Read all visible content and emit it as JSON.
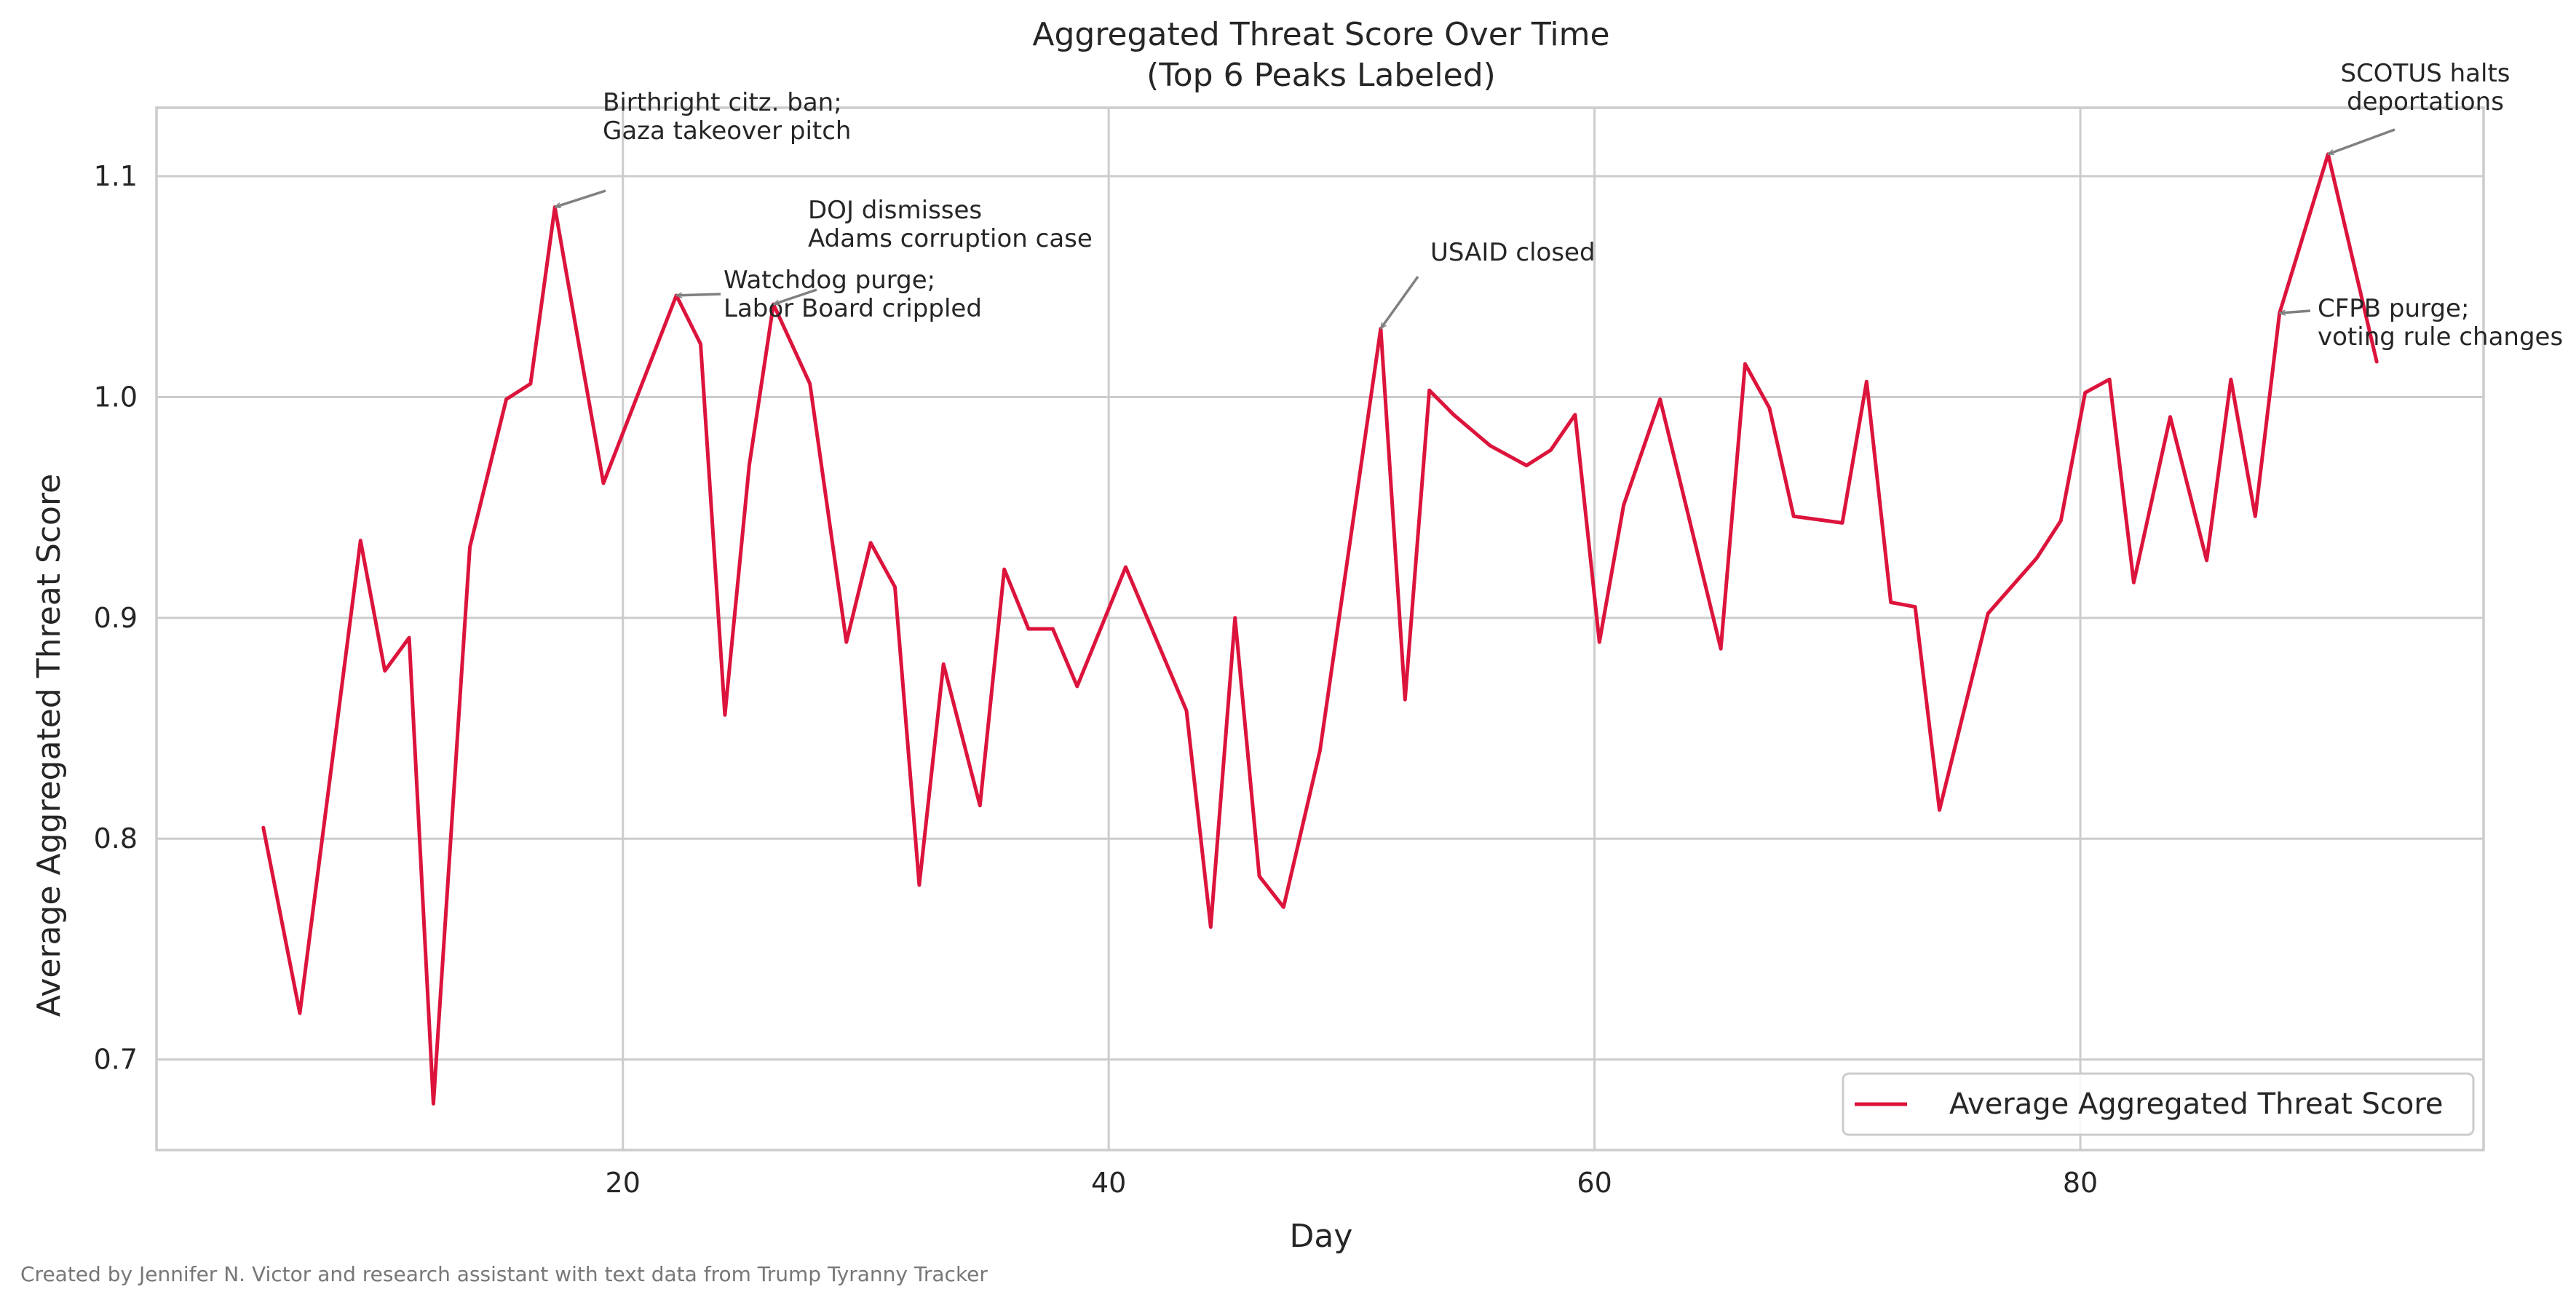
{
  "chart_data": {
    "type": "line",
    "title_line1": "Aggregated Threat Score Over Time",
    "title_line2": "(Top 6 Peaks Labeled)",
    "xlabel": "Day",
    "ylabel": "Average Aggregated Threat Score",
    "xlim": [
      0.8,
      96.6
    ],
    "ylim": [
      0.659,
      1.131
    ],
    "xticks": [
      20,
      40,
      60,
      80
    ],
    "yticks": [
      0.7,
      0.8,
      0.9,
      1.0,
      1.1
    ],
    "ytick_labels": [
      "0.7",
      "0.8",
      "0.9",
      "1.0",
      "1.1"
    ],
    "grid": true,
    "legend_position": "lower right",
    "series": [
      {
        "name": "Average Aggregated Threat Score",
        "color": "#dc143c",
        "x": [
          5.2,
          6.7,
          9.2,
          10.2,
          11.2,
          12.2,
          13.7,
          15.2,
          16.2,
          17.2,
          18.2,
          19.2,
          22.2,
          23.2,
          24.2,
          25.2,
          26.2,
          27.7,
          29.2,
          30.2,
          31.2,
          32.2,
          33.2,
          34.7,
          35.7,
          36.7,
          37.7,
          38.7,
          40.7,
          43.2,
          44.2,
          45.2,
          46.2,
          47.2,
          48.7,
          51.2,
          52.2,
          53.2,
          54.2,
          55.7,
          57.2,
          58.2,
          59.2,
          60.2,
          61.2,
          62.7,
          65.2,
          66.2,
          67.2,
          68.2,
          70.2,
          71.2,
          72.2,
          73.2,
          74.2,
          76.2,
          78.2,
          79.2,
          80.2,
          81.2,
          82.2,
          83.7,
          85.2,
          86.2,
          87.2,
          88.2,
          90.2,
          92.2
        ],
        "y": [
          0.805,
          0.721,
          0.935,
          0.876,
          0.891,
          0.68,
          0.932,
          0.999,
          1.006,
          1.086,
          1.023,
          0.961,
          1.046,
          1.024,
          0.856,
          0.969,
          1.042,
          1.006,
          0.889,
          0.934,
          0.914,
          0.779,
          0.879,
          0.815,
          0.922,
          0.895,
          0.895,
          0.869,
          0.923,
          0.858,
          0.76,
          0.9,
          0.783,
          0.769,
          0.84,
          1.031,
          0.863,
          1.003,
          0.992,
          0.978,
          0.969,
          0.976,
          0.992,
          0.889,
          0.951,
          0.999,
          0.886,
          1.015,
          0.995,
          0.946,
          0.943,
          1.007,
          0.907,
          0.905,
          0.813,
          0.902,
          0.927,
          0.944,
          1.002,
          1.008,
          0.916,
          0.991,
          0.926,
          1.008,
          0.946,
          1.038,
          1.11,
          1.016
        ]
      }
    ],
    "annotations": [
      {
        "lines": [
          "Birthright citz. ban;",
          "Gaza takeover pitch"
        ],
        "point": [
          17.2,
          1.086
        ],
        "arrow_color": "#808080"
      },
      {
        "lines": [
          "Watchdog purge;",
          "Labor Board crippled"
        ],
        "point": [
          22.2,
          1.046
        ],
        "arrow_color": "#808080"
      },
      {
        "lines": [
          "DOJ dismisses",
          "Adams corruption case"
        ],
        "point": [
          26.2,
          1.042
        ],
        "arrow_color": "#808080"
      },
      {
        "lines": [
          "USAID closed"
        ],
        "point": [
          51.2,
          1.031
        ],
        "arrow_color": "#808080"
      },
      {
        "lines": [
          "SCOTUS halts",
          "deportations"
        ],
        "point": [
          90.2,
          1.11
        ],
        "arrow_color": "#808080"
      },
      {
        "lines": [
          "CFPB purge;",
          "voting rule changes"
        ],
        "point": [
          88.2,
          1.038
        ],
        "arrow_color": "#808080"
      }
    ]
  },
  "caption": "Created by Jennifer N. Victor and research assistant with text data from Trump Tyranny Tracker"
}
